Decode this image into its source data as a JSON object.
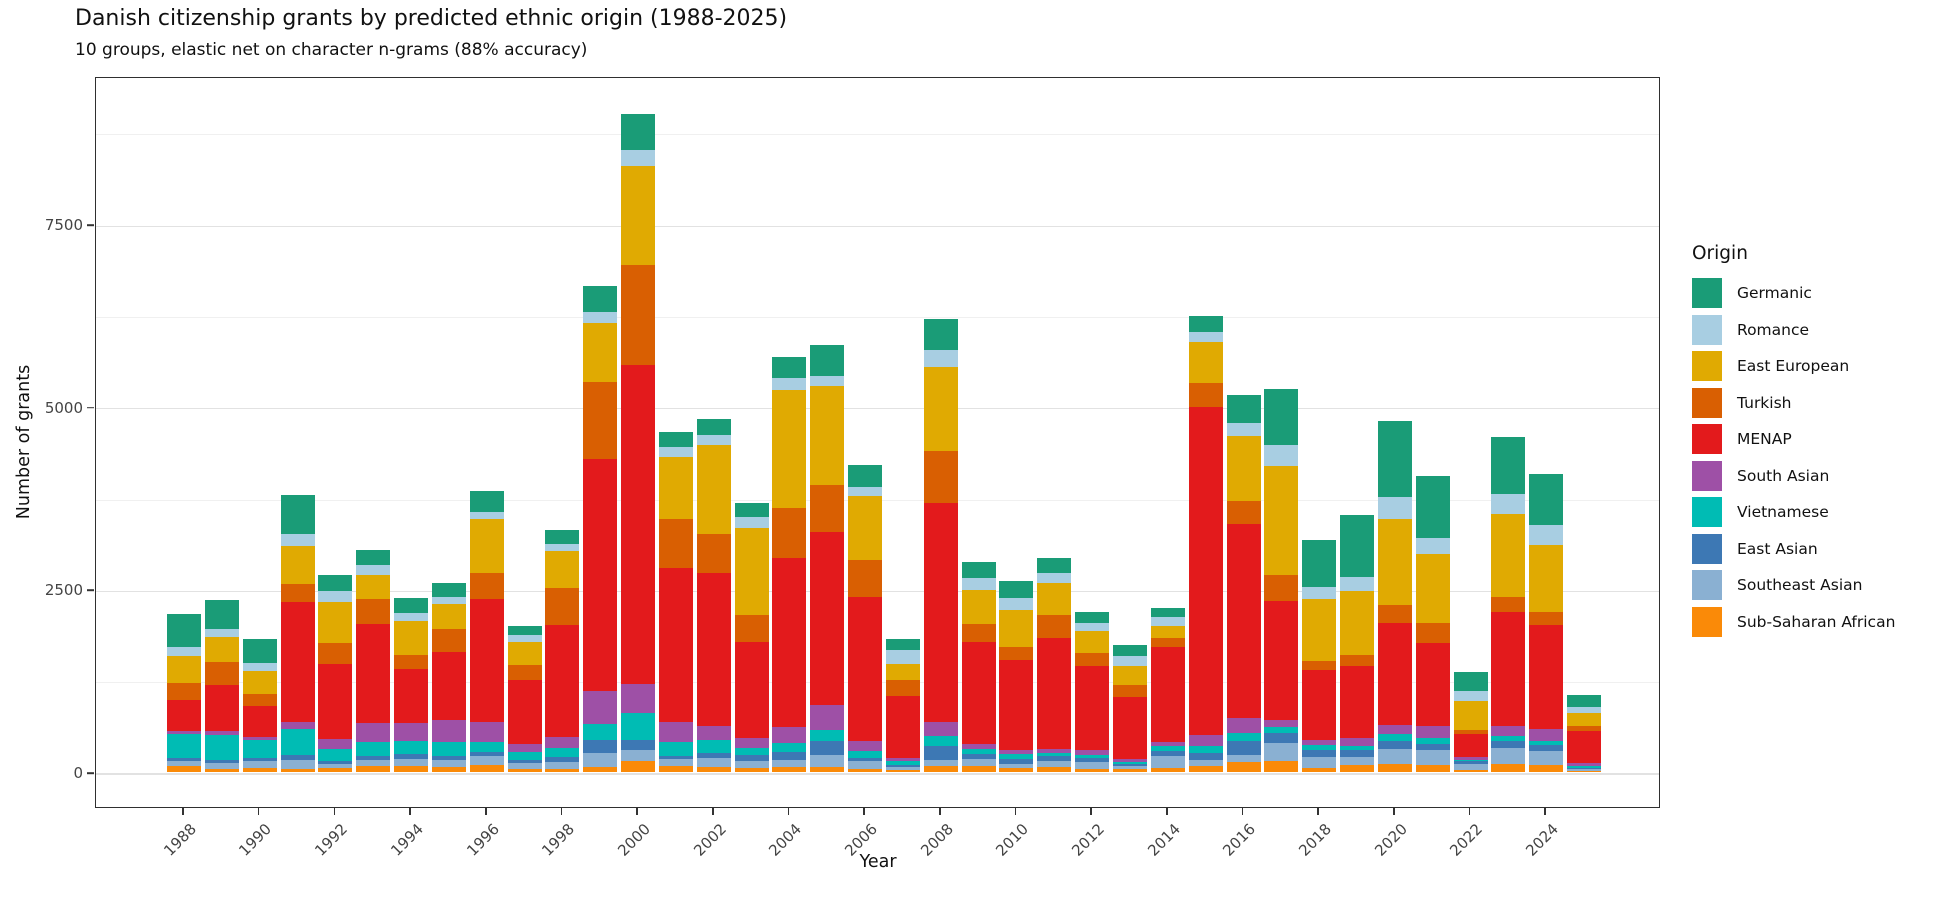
{
  "figure": {
    "title": "Danish citizenship grants by predicted ethnic origin (1988-2025)",
    "subtitle": "10 groups, elastic net on character n-grams (88% accuracy)"
  },
  "chart_data": {
    "type": "bar",
    "stacked": true,
    "title": "Danish citizenship grants by predicted ethnic origin (1988-2025)",
    "subtitle": "10 groups, elastic net on character n-grams (88% accuracy)",
    "xlabel": "Year",
    "ylabel": "Number of grants",
    "legend_title": "Origin",
    "legend_position": "right",
    "grid": true,
    "ylim": [
      0,
      9500
    ],
    "yticks": [
      0,
      2500,
      5000,
      7500
    ],
    "yticks_minor": [
      1250,
      3750,
      6250,
      8750
    ],
    "xticks": [
      1988,
      1990,
      1992,
      1994,
      1996,
      1998,
      2000,
      2002,
      2004,
      2006,
      2008,
      2010,
      2012,
      2014,
      2016,
      2018,
      2020,
      2022,
      2024
    ],
    "categories": [
      1988,
      1989,
      1990,
      1991,
      1992,
      1993,
      1994,
      1995,
      1996,
      1997,
      1998,
      1999,
      2000,
      2001,
      2002,
      2003,
      2004,
      2005,
      2006,
      2007,
      2008,
      2009,
      2010,
      2011,
      2012,
      2013,
      2014,
      2015,
      2016,
      2017,
      2018,
      2019,
      2020,
      2021,
      2022,
      2023,
      2024,
      2025
    ],
    "legend_order_top_to_bottom": [
      "Germanic",
      "Romance",
      "East European",
      "Turkish",
      "MENAP",
      "South Asian",
      "Vietnamese",
      "East Asian",
      "Southeast Asian",
      "Sub-Saharan African"
    ],
    "series": [
      {
        "name": "Sub-Saharan African",
        "color": "#fa8a08",
        "values": [
          75,
          45,
          50,
          40,
          50,
          80,
          80,
          65,
          95,
          45,
          45,
          65,
          150,
          80,
          65,
          55,
          65,
          65,
          45,
          25,
          85,
          85,
          50,
          65,
          35,
          35,
          55,
          80,
          140,
          150,
          60,
          90,
          110,
          95,
          30,
          110,
          95,
          15
        ]
      },
      {
        "name": "Southeast Asian",
        "color": "#8ab0d2",
        "values": [
          75,
          80,
          100,
          120,
          55,
          80,
          100,
          95,
          120,
          75,
          90,
          200,
          155,
          95,
          120,
          95,
          100,
          165,
          105,
          40,
          80,
          95,
          60,
          85,
          105,
          45,
          165,
          90,
          95,
          250,
          150,
          110,
          200,
          200,
          85,
          220,
          190,
          20
        ]
      },
      {
        "name": "East Asian",
        "color": "#3d78b4",
        "values": [
          40,
          45,
          45,
          70,
          45,
          55,
          65,
          65,
          55,
          40,
          70,
          170,
          135,
          40,
          80,
          85,
          115,
          190,
          45,
          30,
          190,
          65,
          70,
          65,
          45,
          25,
          65,
          95,
          185,
          130,
          90,
          95,
          115,
          90,
          30,
          90,
          80,
          20
        ]
      },
      {
        "name": "Vietnamese",
        "color": "#00bcb4",
        "values": [
          330,
          335,
          240,
          360,
          170,
          200,
          185,
          190,
          135,
          110,
          120,
          220,
          370,
          190,
          180,
          90,
          115,
          160,
          90,
          55,
          135,
          65,
          60,
          50,
          45,
          35,
          65,
          95,
          120,
          80,
          70,
          65,
          90,
          85,
          25,
          70,
          65,
          25
        ]
      },
      {
        "name": "South Asian",
        "color": "#9e50a6",
        "values": [
          35,
          55,
          45,
          100,
          135,
          255,
          240,
          300,
          280,
          115,
          160,
          450,
          390,
          285,
          180,
          135,
          220,
          335,
          135,
          40,
          200,
          70,
          60,
          50,
          65,
          40,
          65,
          145,
          200,
          105,
          70,
          105,
          135,
          160,
          35,
          135,
          155,
          45
        ]
      },
      {
        "name": "MENAP",
        "color": "#e31a1c",
        "values": [
          435,
          625,
          425,
          1640,
          1025,
          1355,
          735,
          925,
          1690,
          880,
          1530,
          3180,
          4370,
          2100,
          2105,
          1320,
          2310,
          2365,
          1970,
          845,
          2995,
          1405,
          1230,
          1515,
          1160,
          850,
          1290,
          4490,
          2660,
          1630,
          950,
          985,
          1385,
          1140,
          315,
          1570,
          1430,
          435
        ]
      },
      {
        "name": "Turkish",
        "color": "#d95f02",
        "values": [
          230,
          315,
          160,
          250,
          280,
          350,
          200,
          320,
          350,
          200,
          505,
          1055,
          1370,
          670,
          535,
          365,
          690,
          650,
          510,
          230,
          715,
          240,
          180,
          315,
          170,
          155,
          135,
          330,
          315,
          355,
          135,
          155,
          250,
          270,
          50,
          200,
          180,
          65
        ]
      },
      {
        "name": "East European",
        "color": "#e0aa02",
        "values": [
          365,
          355,
          315,
          520,
          570,
          320,
          470,
          335,
          740,
          310,
          505,
          805,
          1365,
          855,
          1210,
          1195,
          1615,
          1360,
          885,
          220,
          1140,
          470,
          510,
          450,
          300,
          270,
          160,
          560,
          890,
          1490,
          845,
          870,
          1180,
          940,
          400,
          1140,
          920,
          180
        ]
      },
      {
        "name": "Romance",
        "color": "#a8cee2",
        "values": [
          125,
          105,
          115,
          160,
          155,
          135,
          105,
          100,
          90,
          95,
          100,
          155,
          215,
          135,
          135,
          150,
          160,
          135,
          120,
          180,
          240,
          160,
          160,
          135,
          115,
          135,
          120,
          135,
          180,
          295,
          160,
          200,
          295,
          220,
          135,
          270,
          270,
          90
        ]
      },
      {
        "name": "Germanic",
        "color": "#1a9c77",
        "values": [
          450,
          400,
          320,
          540,
          215,
          215,
          200,
          190,
          300,
          130,
          190,
          355,
          490,
          200,
          230,
          200,
          290,
          420,
          295,
          155,
          430,
          220,
          240,
          200,
          155,
          150,
          120,
          230,
          375,
          760,
          645,
          850,
          1045,
          850,
          265,
          780,
          690,
          165
        ]
      }
    ]
  }
}
